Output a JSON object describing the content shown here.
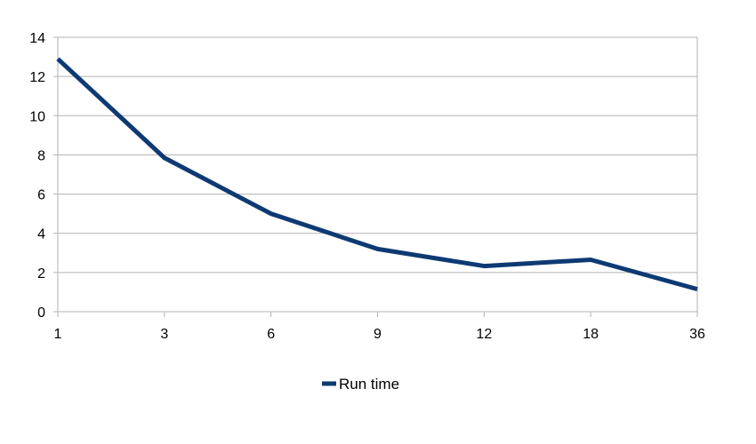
{
  "chart_data": {
    "type": "line",
    "title": "",
    "xlabel": "",
    "ylabel": "",
    "categories": [
      "1",
      "3",
      "6",
      "9",
      "12",
      "18",
      "36"
    ],
    "series": [
      {
        "name": "Run time",
        "values": [
          12.9,
          7.85,
          5.0,
          3.2,
          2.33,
          2.65,
          1.15
        ],
        "color": "#0e3a73"
      }
    ],
    "ylim": [
      0,
      14
    ],
    "y_ticks": [
      0,
      2,
      4,
      6,
      8,
      10,
      12,
      14
    ],
    "grid": true,
    "grid_color": "#b3b3b3",
    "legend_position": "bottom"
  }
}
